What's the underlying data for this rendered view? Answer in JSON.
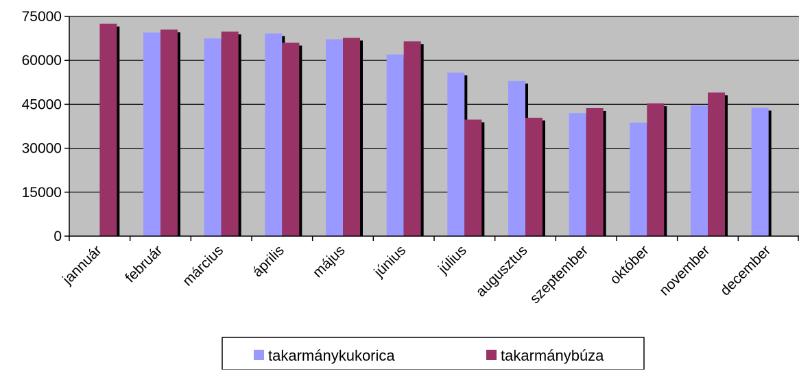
{
  "chart_data": {
    "type": "bar",
    "categories": [
      "jannuár",
      "február",
      "március",
      "április",
      "május",
      "június",
      "július",
      "augusztus",
      "szeptember",
      "október",
      "november",
      "december"
    ],
    "series": [
      {
        "name": "takarmánykukorica",
        "color": "#9999FF",
        "values": [
          null,
          69500,
          67500,
          69200,
          67200,
          62000,
          55800,
          53000,
          42000,
          38700,
          44600,
          43800
        ]
      },
      {
        "name": "takarmánybúza",
        "color": "#993366",
        "values": [
          72500,
          70500,
          69800,
          66000,
          67700,
          66500,
          39800,
          40400,
          43700,
          45300,
          49000,
          null
        ]
      }
    ],
    "ylim": [
      0,
      75000
    ],
    "yticks": [
      0,
      15000,
      30000,
      45000,
      60000,
      75000
    ],
    "ytick_labels": [
      "0",
      "15000",
      "30000",
      "45000",
      "60000",
      "75000"
    ],
    "plot_background": "#C0C0C0",
    "grid": true,
    "legend_position": "bottom"
  }
}
